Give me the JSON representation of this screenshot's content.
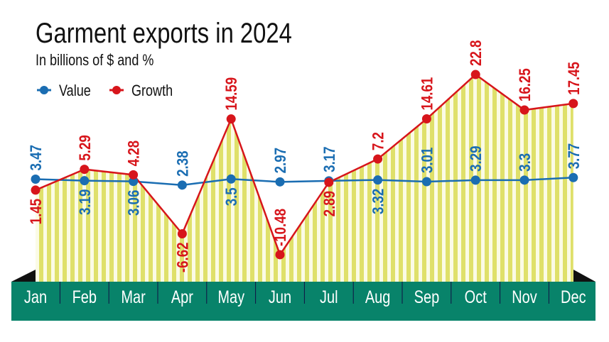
{
  "chart_data": {
    "type": "line",
    "title": "Garment exports in 2024",
    "subtitle": "In billions of $ and %",
    "categories": [
      "Jan",
      "Feb",
      "Mar",
      "Apr",
      "May",
      "Jun",
      "Jul",
      "Aug",
      "Sep",
      "Oct",
      "Nov",
      "Dec"
    ],
    "series": [
      {
        "name": "Value",
        "color": "#1a6db2",
        "values": [
          3.47,
          3.19,
          3.06,
          2.38,
          3.5,
          2.97,
          3.17,
          3.32,
          3.01,
          3.29,
          3.3,
          3.77
        ]
      },
      {
        "name": "Growth",
        "color": "#d7151b",
        "values": [
          1.45,
          5.29,
          4.28,
          -6.62,
          14.59,
          -10.48,
          2.89,
          7.2,
          14.61,
          22.8,
          16.25,
          17.45
        ]
      }
    ],
    "legend": "top-left",
    "grid": false,
    "fill_color": "#dfe06a",
    "axis_band_color": "#08836a"
  }
}
